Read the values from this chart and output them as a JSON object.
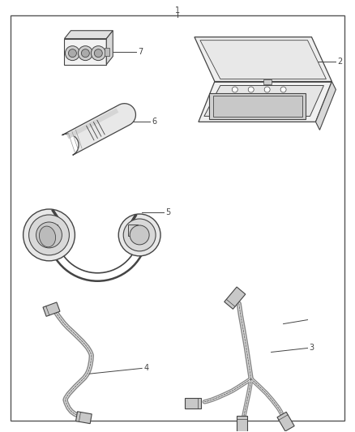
{
  "background_color": "#ffffff",
  "border_color": "#555555",
  "line_color": "#444444",
  "fig_width": 4.38,
  "fig_height": 5.33,
  "dpi": 100
}
